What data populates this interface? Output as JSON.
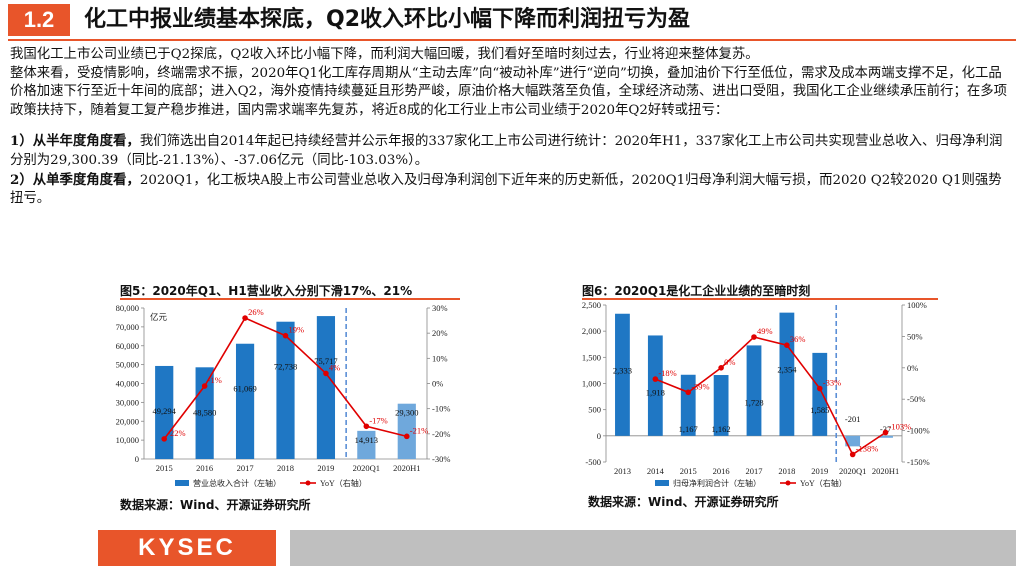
{
  "header": {
    "section_number": "1.2",
    "title": "化工中报业绩基本探底，Q2收入环比小幅下降而利润扭亏为盈"
  },
  "body": {
    "para1": "我国化工上市公司业绩已于Q2探底，Q2收入环比小幅下降，而利润大幅回暖，我们看好至暗时刻过去，行业将迎来整体复苏。",
    "para2": "整体来看，受疫情影响，终端需求不振，2020年Q1化工库存周期从“主动去库”向“被动补库”进行“逆向”切换，叠加油价下行至低位，需求及成本两端支撑不足，化工品价格加速下行至近十年间的底部；进入Q2，海外疫情持续蔓延且形势严峻，原油价格大幅跌落至负值，全球经济动荡、进出口受阻，我国化工企业继续承压前行；在多项政策扶持下，随着复工复产稳步推进，国内需求端率先复苏，将近8成的化工行业上市公司业绩于2020年Q2好转或扭亏：",
    "item1_bold": "1）从半年度角度看，",
    "item1_text": "我们筛选出自2014年起已持续经营并公示年报的337家化工上市公司进行统计：2020年H1，337家化工上市公司共实现营业总收入、归母净利润分别为29,300.39（同比-21.13%）、-37.06亿元（同比-103.03%）。",
    "item2_bold": "2）从单季度角度看，",
    "item2_text": "2020Q1，化工板块A股上市公司营业总收入及归母净利润创下近年来的历史新低，2020Q1归母净利润大幅亏损，而2020 Q2较2020 Q1则强势扭亏。"
  },
  "figure5": {
    "title": "图5：2020年Q1、H1营业收入分别下滑17%、21%",
    "source": "数据来源：Wind、开源证券研究所"
  },
  "figure6": {
    "title": "图6：2020Q1是化工企业业绩的至暗时刻",
    "source": "数据来源：Wind、开源证券研究所"
  },
  "footer": {
    "logo": "KYSEC"
  },
  "colors": {
    "accent": "#e8552a",
    "bar": "#1f77c4",
    "bar_light": "#6fa8dc",
    "line": "#e00000"
  },
  "chart_data": [
    {
      "type": "bar",
      "categories": [
        "2015",
        "2016",
        "2017",
        "2018",
        "2019",
        "2020Q1",
        "2020H1"
      ],
      "series": [
        {
          "name": "营业总收入合计（左轴）",
          "axis": "left",
          "values": [
            49294,
            48580,
            61069,
            72738,
            75717,
            14913,
            29300
          ],
          "labels": [
            "49,294",
            "48,580",
            "61,069",
            "72,738",
            "75,717",
            "14,913",
            "29,300"
          ]
        },
        {
          "name": "YoY（右轴）",
          "axis": "right",
          "type": "line",
          "values": [
            -22,
            -1,
            26,
            19,
            4,
            -17,
            -21
          ],
          "labels": [
            "-22%",
            "-1%",
            "26%",
            "19%",
            "4%",
            "-17%",
            "-21%"
          ]
        }
      ],
      "unit_label": "亿元",
      "ylim": [
        0,
        80000
      ],
      "yticks": [
        "0",
        "10,000",
        "20,000",
        "30,000",
        "40,000",
        "50,000",
        "60,000",
        "70,000",
        "80,000"
      ],
      "y2lim": [
        -30,
        30
      ],
      "y2ticks": [
        "-30%",
        "-20%",
        "-10%",
        "0%",
        "10%",
        "20%",
        "30%"
      ],
      "legend": "bottom"
    },
    {
      "type": "bar",
      "categories": [
        "2013",
        "2014",
        "2015",
        "2016",
        "2017",
        "2018",
        "2019",
        "2020Q1",
        "2020H1"
      ],
      "series": [
        {
          "name": "归母净利润合计（左轴）",
          "axis": "left",
          "values": [
            2333,
            1918,
            1167,
            1162,
            1728,
            2354,
            1585,
            -201,
            -37
          ],
          "labels": [
            "2,333",
            "1,918",
            "1,167",
            "1,162",
            "1,728",
            "2,354",
            "1,585",
            "-201",
            "-37"
          ]
        },
        {
          "name": "YoY（右轴）",
          "axis": "right",
          "type": "line",
          "values": [
            null,
            -18,
            -39,
            0,
            49,
            36,
            -33,
            -138,
            -103
          ],
          "labels": [
            "",
            "-18%",
            "-39%",
            "0%",
            "49%",
            "36%",
            "-33%",
            "-138%",
            "-103%"
          ]
        }
      ],
      "ylim": [
        -500,
        2500
      ],
      "yticks": [
        "-500",
        "0",
        "500",
        "1,000",
        "1,500",
        "2,000",
        "2,500"
      ],
      "y2lim": [
        -150,
        100
      ],
      "y2ticks": [
        "-150%",
        "-100%",
        "-50%",
        "0%",
        "50%",
        "100%"
      ],
      "legend": "bottom"
    }
  ]
}
